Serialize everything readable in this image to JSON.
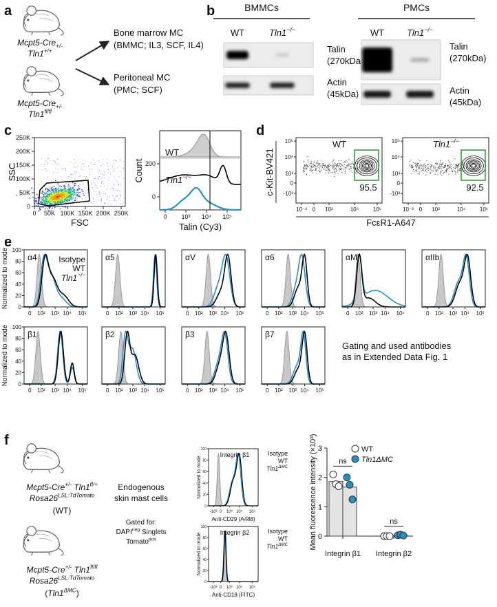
{
  "a": {
    "label": "a",
    "mouse_wt": [
      [
        {
          "text": "Mcpt5-Cre",
          "style": "i"
        },
        {
          "text": "+/-",
          "style": "isub"
        }
      ],
      [
        {
          "text": "Tln1",
          "style": "i"
        },
        {
          "text": "+/+",
          "style": "isup"
        }
      ]
    ],
    "mouse_ko": [
      [
        {
          "text": "Mcpt5-Cre",
          "style": "i"
        },
        {
          "text": "+/-",
          "style": "isub"
        }
      ],
      [
        {
          "text": "Tln1",
          "style": "i"
        },
        {
          "text": "fl/fl",
          "style": "isup"
        }
      ]
    ],
    "outcomes": [
      [
        "Bone marrow MC",
        "(BMMC; IL3, SCF, IL4)"
      ],
      [
        "Peritoneal MC",
        "(PMC; SCF)"
      ]
    ]
  },
  "b": {
    "label": "b",
    "blots": [
      {
        "title": "BMMCs",
        "lanes": [
          [
            {
              "text": "WT"
            }
          ],
          [
            {
              "text": "Tln1",
              "style": "i"
            },
            {
              "text": "−/−",
              "style": "isup"
            }
          ]
        ],
        "proteins": [
          [
            "Talin",
            "(270kDa)"
          ],
          [
            "Actin",
            "(45kDa)"
          ]
        ]
      },
      {
        "title": "PMCs",
        "lanes": [
          [
            {
              "text": "WT"
            }
          ],
          [
            {
              "text": "Tln1",
              "style": "i"
            },
            {
              "text": "−/−",
              "style": "isup"
            }
          ]
        ],
        "proteins": [
          [
            "Talin",
            "(270kDa)"
          ],
          [
            "Actin",
            "(45kDa)"
          ]
        ]
      }
    ]
  },
  "c": {
    "label": "c",
    "scatter": {
      "xlabel": "FSC",
      "ylabel": "SSC",
      "xticks": [
        "0",
        "50K",
        "100K",
        "150K",
        "200K",
        "250K"
      ],
      "yticks": [
        "0",
        "50K",
        "100K",
        "150K",
        "200K",
        "250K"
      ]
    },
    "histogram": {
      "ylabel": "Count",
      "xlabel": "Talin (Cy3)",
      "xticks": [
        "0",
        "10³",
        "10⁴",
        "10⁵"
      ],
      "yticks": [
        "200",
        "0"
      ],
      "traces": [
        [
          {
            "text": "WT"
          }
        ],
        [
          {
            "text": "Tln1",
            "style": "i"
          },
          {
            "text": "−/−",
            "style": "isup"
          }
        ]
      ]
    }
  },
  "d": {
    "label": "d",
    "plots": [
      {
        "title": [
          {
            "text": "WT"
          }
        ],
        "gate": 95.5
      },
      {
        "title": [
          {
            "text": "Tln1",
            "style": "i"
          },
          {
            "text": "−/−",
            "style": "isup"
          }
        ],
        "gate": 92.5
      }
    ],
    "ylabel": "c-Kit-BV421",
    "xlabel": "FcεR1-A647",
    "xticks": [
      "10⁻³",
      "0",
      "10³",
      "10⁴",
      "10⁵"
    ],
    "yticks": [
      "10⁵",
      "10⁴",
      "10³",
      "0",
      "-10³"
    ]
  },
  "e": {
    "label": "e",
    "ylabel": "Normalized to mode",
    "legend": [
      [
        {
          "text": "Isotype"
        }
      ],
      [
        {
          "text": "WT"
        }
      ],
      [
        {
          "text": "Tln1",
          "style": "i"
        },
        {
          "text": "−/−",
          "style": "isup"
        }
      ]
    ],
    "integrins": [
      "α4",
      "α5",
      "αV",
      "α6",
      "αM",
      "αIIb",
      "β1",
      "β2",
      "β3",
      "β7"
    ],
    "xticks": [
      "0",
      "10²",
      "10³",
      "10⁴",
      "10⁵"
    ],
    "yticks": [
      "100",
      "80",
      "60",
      "40",
      "20",
      "0"
    ],
    "note": [
      "Gating and used antibodies",
      "as in Extended Data Fig. 1"
    ]
  },
  "f": {
    "label": "f",
    "mice": [
      [
        [
          {
            "text": "Mcpt5-Cre",
            "style": "i"
          },
          {
            "text": "+/-",
            "style": "isup"
          },
          {
            "text": " Tln1",
            "style": "i"
          },
          {
            "text": "fl/+",
            "style": "isup"
          }
        ],
        [
          {
            "text": "Rosa26",
            "style": "i"
          },
          {
            "text": "LSL:TdTomato",
            "style": "isup"
          }
        ],
        [
          {
            "text": "(WT)"
          }
        ]
      ],
      [
        [
          {
            "text": "Mcpt5-Cre",
            "style": "i"
          },
          {
            "text": "+/-",
            "style": "isup"
          },
          {
            "text": " Tln1",
            "style": "i"
          },
          {
            "text": "fl/fl",
            "style": "isup"
          }
        ],
        [
          {
            "text": "Rosa26",
            "style": "i"
          },
          {
            "text": "LSL:TdTomato",
            "style": "isup"
          }
        ],
        [
          {
            "text": "("
          },
          {
            "text": "Tln1",
            "style": "i"
          },
          {
            "text": "ΔMC",
            "style": "isup"
          },
          {
            "text": ")"
          }
        ]
      ]
    ],
    "sample": [
      "Endogenous",
      "skin mast cells"
    ],
    "gating": [
      [
        {
          "text": "Gated for:"
        }
      ],
      [
        {
          "text": "DAPI"
        },
        {
          "text": "neg",
          "style": "sup"
        },
        {
          "text": " Singlets"
        }
      ],
      [
        {
          "text": "Tomato"
        },
        {
          "text": "pos",
          "style": "sup"
        }
      ]
    ],
    "histograms": [
      {
        "title": "Integrin β1",
        "xlabel": "Anti-CD29 (A488)"
      },
      {
        "title": "Integrin β2",
        "xlabel": "Anti-CD18 (FITC)"
      }
    ],
    "hist_ylabel": "Normalized to mode",
    "hist_legend": [
      [
        {
          "text": "Isotype"
        }
      ],
      [
        {
          "text": "WT"
        }
      ],
      [
        {
          "text": "Tln1",
          "style": "i"
        },
        {
          "text": "ΔMC",
          "style": "isup"
        }
      ]
    ],
    "hist_xticks": [
      "-10³",
      "0",
      "10³",
      "10⁴",
      "10⁵"
    ],
    "hist_yticks": [
      "100",
      "80",
      "60",
      "40",
      "20",
      "0"
    ]
  },
  "chart_data": {
    "type": "bar",
    "ylabel": "Mean fluorescence intensity (×10³)",
    "categories": [
      "Integrin β1",
      "Integrin β2"
    ],
    "series": [
      {
        "name": "WT",
        "color": "#ffffff",
        "values": [
          1.86,
          0.01
        ],
        "points": [
          [
            2.1,
            1.77,
            1.7
          ],
          [
            0,
            0,
            0
          ]
        ]
      },
      {
        "name": "Tln1ΔMC",
        "color": "#2a8fc4",
        "values": [
          1.67,
          0.03
        ],
        "points": [
          [
            2.0,
            1.75,
            1.25
          ],
          [
            0.03,
            0.05,
            0.02
          ]
        ]
      }
    ],
    "bar_color": "#e3e3e3",
    "ylim": [
      0,
      3
    ],
    "yticks": [
      0,
      1,
      2,
      3
    ],
    "annotations": [
      "ns",
      "ns"
    ]
  }
}
